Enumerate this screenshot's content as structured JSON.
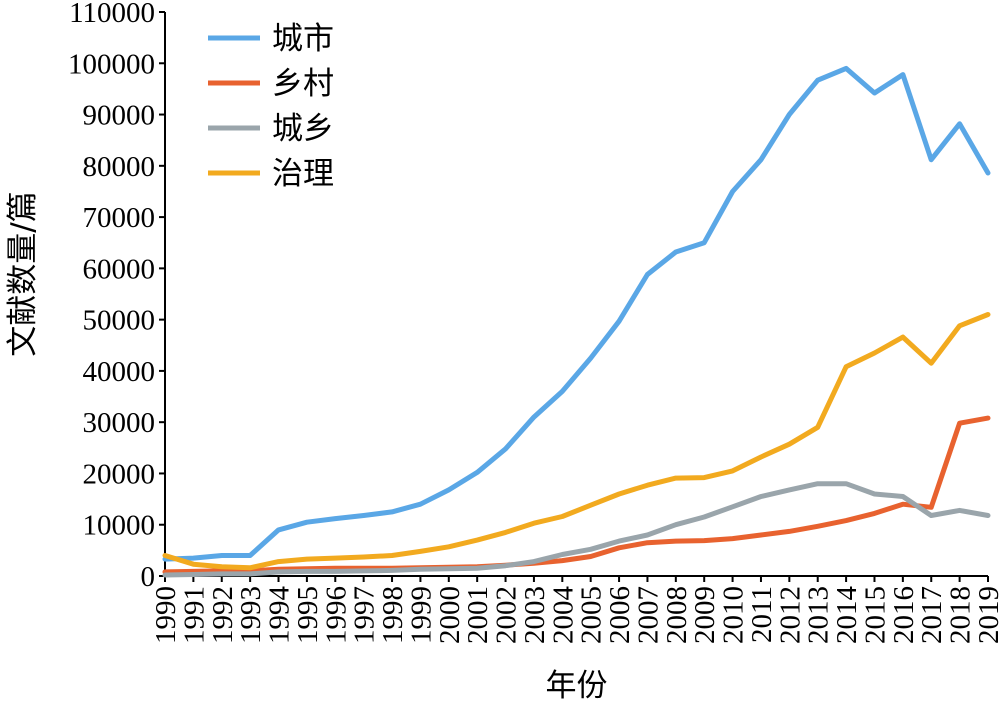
{
  "chart_data": {
    "type": "line",
    "title": "",
    "xlabel": "年份",
    "ylabel": "文献数量/篇",
    "ylim": [
      0,
      110000
    ],
    "yticks": [
      0,
      10000,
      20000,
      30000,
      40000,
      50000,
      60000,
      70000,
      80000,
      90000,
      100000,
      110000
    ],
    "legend_position": "top-left",
    "grid": false,
    "categories": [
      "1990",
      "1991",
      "1992",
      "1993",
      "1994",
      "1995",
      "1996",
      "1997",
      "1998",
      "1999",
      "2000",
      "2001",
      "2002",
      "2003",
      "2004",
      "2005",
      "2006",
      "2007",
      "2008",
      "2009",
      "2010",
      "2011",
      "2012",
      "2013",
      "2014",
      "2015",
      "2016",
      "2017",
      "2018",
      "2019"
    ],
    "series": [
      {
        "name": "城市",
        "color": "#5aa7e6",
        "values": [
          3300,
          3500,
          4000,
          4000,
          9000,
          10500,
          11200,
          11800,
          12500,
          14000,
          16800,
          20200,
          24800,
          31000,
          36000,
          42500,
          49700,
          58800,
          63200,
          65000,
          75000,
          81200,
          90000,
          96700,
          99000,
          94200,
          97800,
          81200,
          88200,
          78600
        ]
      },
      {
        "name": "乡村",
        "color": "#e8622f",
        "values": [
          800,
          900,
          1000,
          1000,
          1300,
          1400,
          1500,
          1500,
          1500,
          1600,
          1700,
          1800,
          2100,
          2500,
          3000,
          3800,
          5500,
          6500,
          6800,
          6900,
          7300,
          8000,
          8700,
          9700,
          10800,
          12200,
          14000,
          13400,
          29800,
          30800
        ]
      },
      {
        "name": "城乡",
        "color": "#9aa5ab",
        "values": [
          200,
          300,
          400,
          400,
          800,
          900,
          900,
          1000,
          1100,
          1300,
          1400,
          1500,
          2000,
          2800,
          4200,
          5200,
          6800,
          8000,
          10000,
          11500,
          13500,
          15500,
          16800,
          18000,
          18000,
          16000,
          15500,
          11800,
          12800,
          11800
        ]
      },
      {
        "name": "治理",
        "color": "#f2aa1f",
        "values": [
          4000,
          2300,
          1800,
          1600,
          2800,
          3300,
          3500,
          3700,
          4000,
          4800,
          5700,
          7000,
          8500,
          10300,
          11600,
          13800,
          16000,
          17700,
          19100,
          19200,
          20500,
          23200,
          25700,
          29000,
          40800,
          43500,
          46600,
          41500,
          48800,
          51000
        ]
      }
    ]
  }
}
